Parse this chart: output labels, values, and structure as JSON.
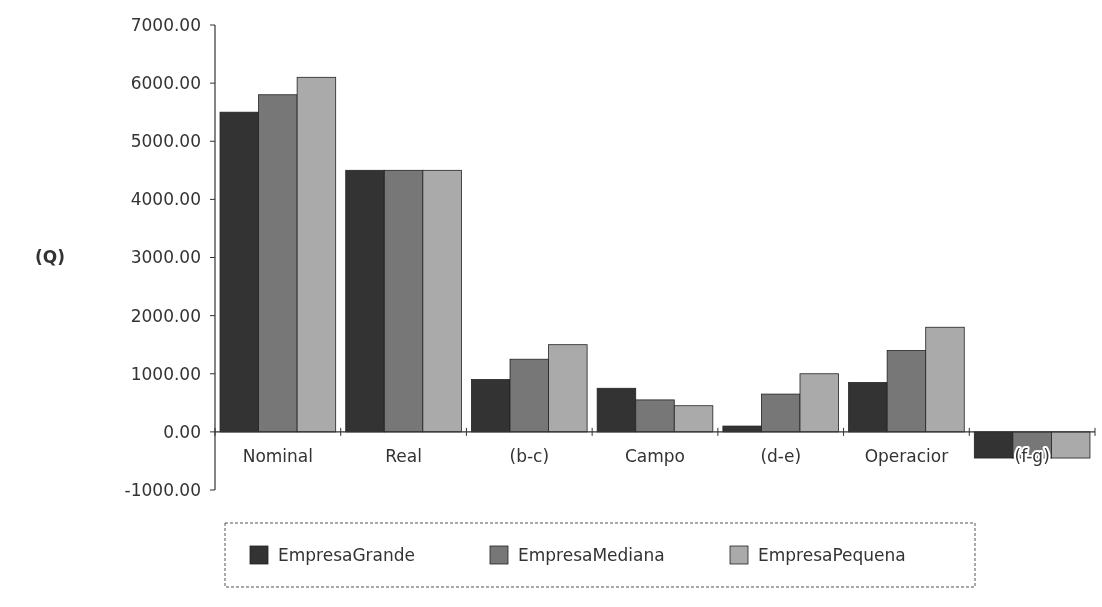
{
  "chart_data": {
    "type": "bar",
    "ylabel": "(Q)",
    "categories": [
      "Nominal",
      "Real",
      "(b-c)",
      "Campo",
      "(d-e)",
      "Operacior",
      "(f-g)"
    ],
    "series": [
      {
        "name": "EmpresaGrande",
        "color": "#333333",
        "values": [
          5500,
          4500,
          900,
          750,
          100,
          850,
          -450
        ]
      },
      {
        "name": "EmpresaMediana",
        "color": "#777777",
        "values": [
          5800,
          4500,
          1250,
          550,
          650,
          1400,
          -450
        ]
      },
      {
        "name": "EmpresaPequena",
        "color": "#aaaaaa",
        "values": [
          6100,
          4500,
          1500,
          450,
          1000,
          1800,
          -450
        ]
      }
    ],
    "ylim": [
      -1000,
      7000
    ],
    "yticks": [
      {
        "value": -1000,
        "label": "-1000.00"
      },
      {
        "value": 0,
        "label": "0.00"
      },
      {
        "value": 1000,
        "label": "1000.00"
      },
      {
        "value": 2000,
        "label": "2000.00"
      },
      {
        "value": 3000,
        "label": "3000.00"
      },
      {
        "value": 4000,
        "label": "4000.00"
      },
      {
        "value": 5000,
        "label": "5000.00"
      },
      {
        "value": 6000,
        "label": "6000.00"
      },
      {
        "value": 7000,
        "label": "7000.00"
      }
    ],
    "legend": "bottom",
    "grid": false
  }
}
